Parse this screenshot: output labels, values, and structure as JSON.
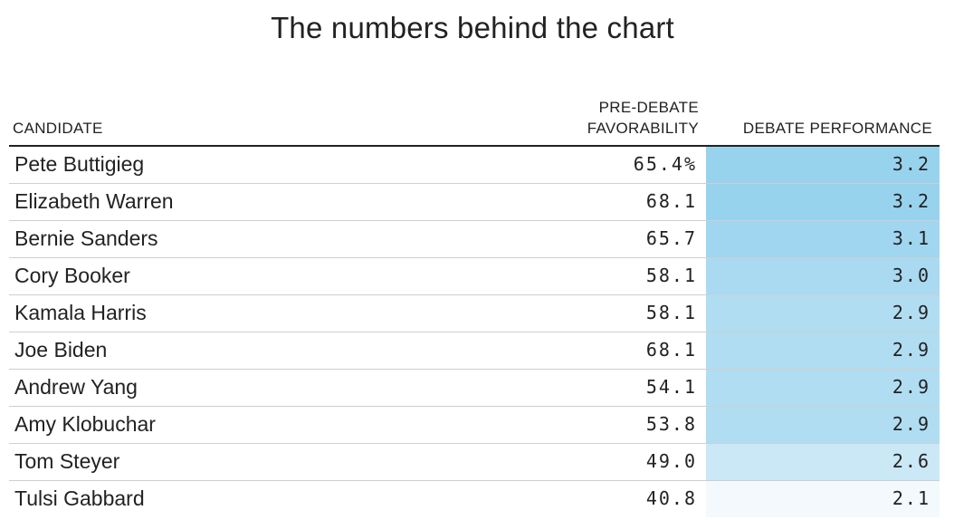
{
  "title": "The numbers behind the chart",
  "chart_data": {
    "type": "table",
    "title": "The numbers behind the chart",
    "columns": [
      "CANDIDATE",
      "PRE-DEBATE FAVORABILITY",
      "DEBATE PERFORMANCE"
    ],
    "header_lines": {
      "candidate": "CANDIDATE",
      "favorability_line1": "PRE-DEBATE",
      "favorability_line2": "FAVORABILITY",
      "debate": "DEBATE PERFORMANCE"
    },
    "rows": [
      {
        "candidate": "Pete Buttigieg",
        "favorability": "65.4%",
        "debate": "3.2"
      },
      {
        "candidate": "Elizabeth Warren",
        "favorability": "68.1",
        "debate": "3.2"
      },
      {
        "candidate": "Bernie Sanders",
        "favorability": "65.7",
        "debate": "3.1"
      },
      {
        "candidate": "Cory Booker",
        "favorability": "58.1",
        "debate": "3.0"
      },
      {
        "candidate": "Kamala Harris",
        "favorability": "58.1",
        "debate": "2.9"
      },
      {
        "candidate": "Joe Biden",
        "favorability": "68.1",
        "debate": "2.9"
      },
      {
        "candidate": "Andrew Yang",
        "favorability": "54.1",
        "debate": "2.9"
      },
      {
        "candidate": "Amy Klobuchar",
        "favorability": "53.8",
        "debate": "2.9"
      },
      {
        "candidate": "Tom Steyer",
        "favorability": "49.0",
        "debate": "2.6"
      },
      {
        "candidate": "Tulsi Gabbard",
        "favorability": "40.8",
        "debate": "2.1"
      }
    ],
    "colors": {
      "debate_high": "#98d3ee",
      "debate_mid": "#a8d9f0",
      "debate_low": "#cfe9f6",
      "debate_lowest": "#f3f9fc",
      "header_rule": "#222222",
      "row_rule": "#cfcfcf"
    }
  }
}
